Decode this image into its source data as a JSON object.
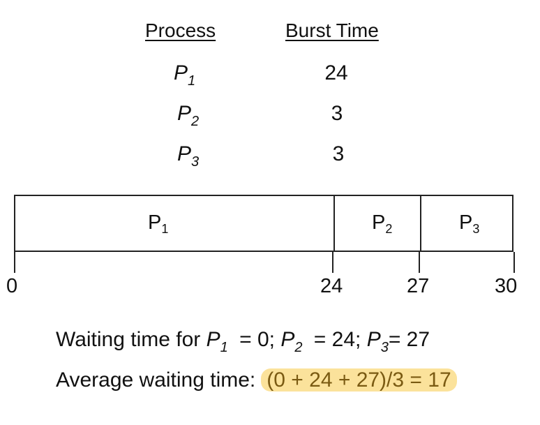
{
  "table": {
    "header_process": "Process",
    "header_burst": "Burst Time",
    "rows": [
      {
        "name": "P",
        "sub": "1",
        "burst": "24"
      },
      {
        "name": "P",
        "sub": "2",
        "burst": "3"
      },
      {
        "name": "P",
        "sub": "3",
        "burst": "3"
      }
    ]
  },
  "gantt": {
    "segments": [
      {
        "name": "P",
        "sub": "1"
      },
      {
        "name": "P",
        "sub": "2"
      },
      {
        "name": "P",
        "sub": "3"
      }
    ],
    "ticks": [
      "0",
      "24",
      "27",
      "30"
    ]
  },
  "waiting": {
    "prefix": "Waiting time for ",
    "p1": "P",
    "p1_sub": "1",
    "p1_val": " = 0; ",
    "p2": "P",
    "p2_sub": "2",
    "p2_val": " = 24; ",
    "p3": "P",
    "p3_sub": "3",
    "p3_val": "= 27"
  },
  "average": {
    "label": "Average waiting time:",
    "formula": "(0 + 24 + 27)/3 = 17",
    "highlight_color": "#fbe29b"
  }
}
